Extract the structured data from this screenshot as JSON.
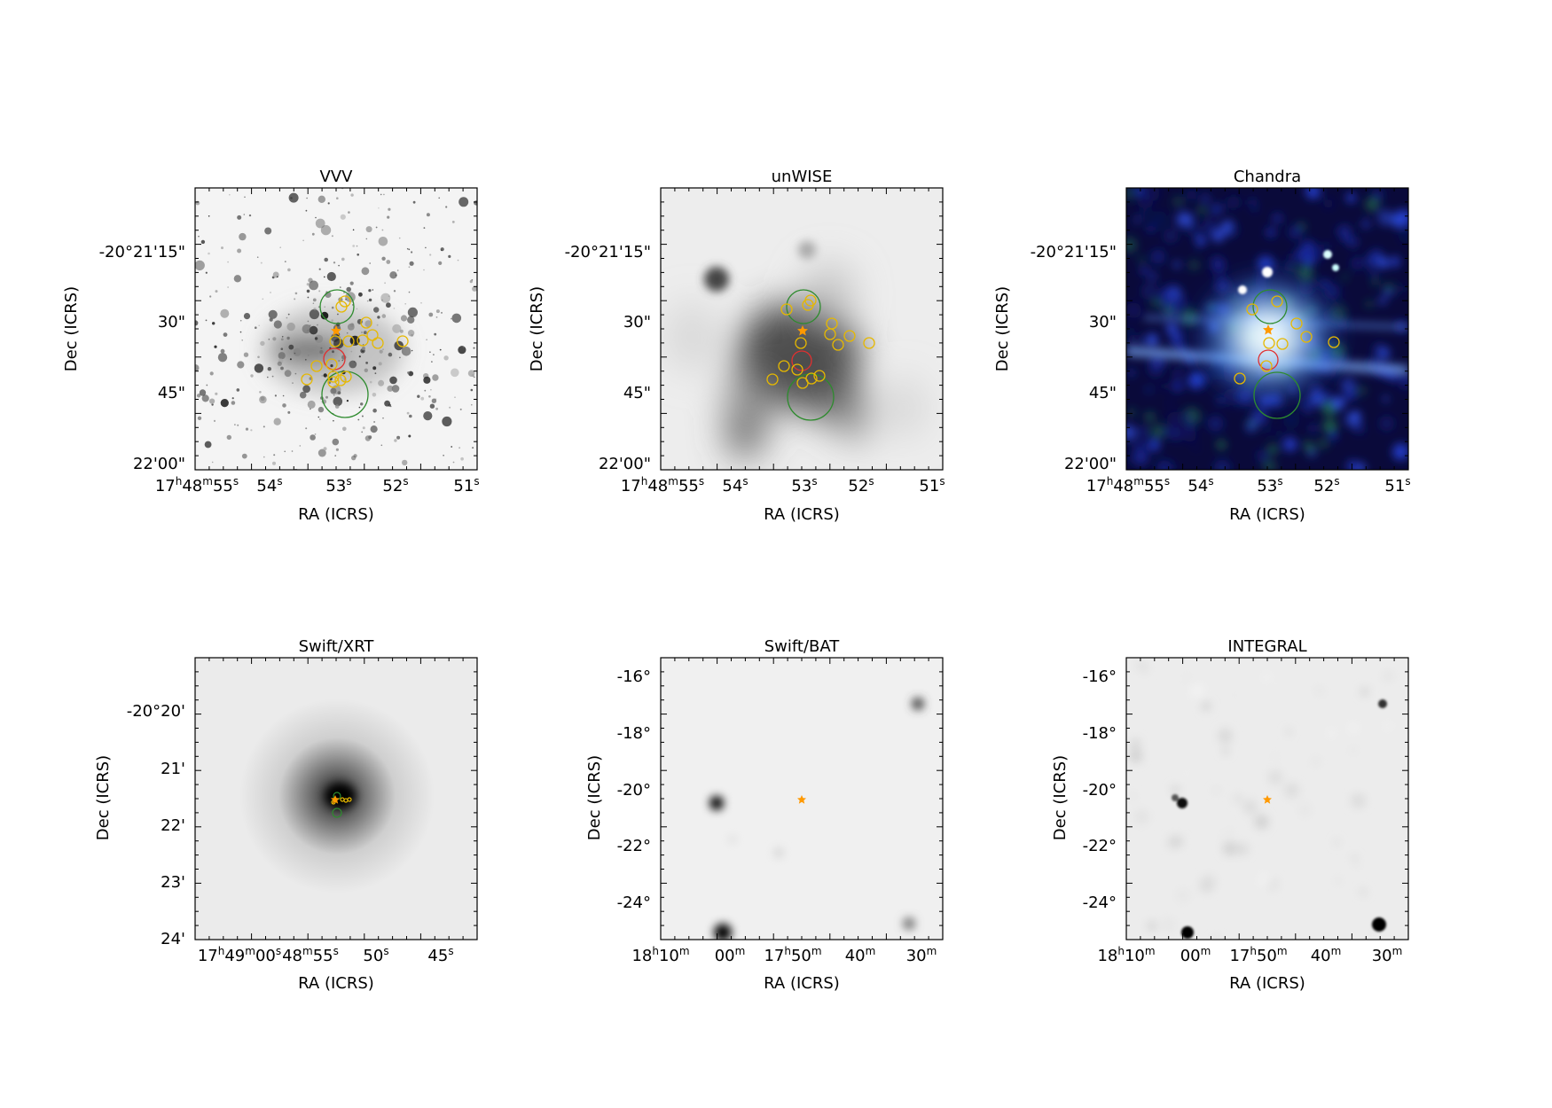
{
  "panels": [
    {
      "title": "VVV",
      "xlabel": "RA (ICRS)",
      "ylabel": "Dec (ICRS)",
      "xticks": [
        {
          "h": "17",
          "hu": "h",
          "m": "48",
          "mu": "m",
          "s": "55",
          "su": "s"
        },
        {
          "s": "54",
          "su": "s"
        },
        {
          "s": "53",
          "su": "s"
        },
        {
          "s": "52",
          "su": "s"
        },
        {
          "s": "51",
          "su": "s"
        }
      ],
      "yticks": [
        "-20°21'15\"",
        "30\"",
        "45\"",
        "22'00\""
      ],
      "image": "near-infrared star field, grayscale inverted",
      "markers": [
        "orange star",
        "red circle",
        "green circles",
        "yellow circles"
      ]
    },
    {
      "title": "unWISE",
      "xlabel": "RA (ICRS)",
      "ylabel": "Dec (ICRS)",
      "xticks": [
        {
          "h": "17",
          "hu": "h",
          "m": "48",
          "mu": "m",
          "s": "55",
          "su": "s"
        },
        {
          "s": "54",
          "su": "s"
        },
        {
          "s": "53",
          "su": "s"
        },
        {
          "s": "52",
          "su": "s"
        },
        {
          "s": "51",
          "su": "s"
        }
      ],
      "yticks": [
        "-20°21'15\"",
        "30\"",
        "45\"",
        "22'00\""
      ],
      "image": "mid-infrared blurred emission, grayscale inverted",
      "markers": [
        "orange star",
        "red circle",
        "green circles",
        "yellow circles"
      ]
    },
    {
      "title": "Chandra",
      "xlabel": "RA (ICRS)",
      "ylabel": "Dec (ICRS)",
      "xticks": [
        {
          "h": "17",
          "hu": "h",
          "m": "48",
          "mu": "m",
          "s": "55",
          "su": "s"
        },
        {
          "s": "54",
          "su": "s"
        },
        {
          "s": "53",
          "su": "s"
        },
        {
          "s": "52",
          "su": "s"
        },
        {
          "s": "51",
          "su": "s"
        }
      ],
      "yticks": [
        "-20°21'15\"",
        "30\"",
        "45\"",
        "22'00\""
      ],
      "image": "false-color X-ray image, blue background with bright white core",
      "markers": [
        "orange star",
        "red circle",
        "green circles",
        "yellow circles"
      ]
    },
    {
      "title": "Swift/XRT",
      "xlabel": "RA (ICRS)",
      "ylabel": "Dec (ICRS)",
      "xticks": [
        {
          "h": "17",
          "hu": "h",
          "m": "49",
          "mu": "m",
          "s": "00",
          "su": "s"
        },
        {
          "m": "48",
          "mu": "m",
          "s": "55",
          "su": "s"
        },
        {
          "s": "50",
          "su": "s"
        },
        {
          "s": "45",
          "su": "s"
        }
      ],
      "yticks": [
        "-20°20'",
        "21'",
        "22'",
        "23'",
        "24'"
      ],
      "image": "X-ray point source, grayscale inverted",
      "markers": [
        "orange star",
        "green circles",
        "yellow circles"
      ]
    },
    {
      "title": "Swift/BAT",
      "xlabel": "RA (ICRS)",
      "ylabel": "Dec (ICRS)",
      "xticks": [
        {
          "h": "18",
          "hu": "h",
          "m": "10",
          "mu": "m"
        },
        {
          "m": "00",
          "mu": "m"
        },
        {
          "h": "17",
          "hu": "h",
          "m": "50",
          "mu": "m"
        },
        {
          "m": "40",
          "mu": "m"
        },
        {
          "m": "30",
          "mu": "m"
        }
      ],
      "yticks": [
        "-16°",
        "-18°",
        "-20°",
        "-22°",
        "-24°"
      ],
      "image": "hard X-ray wide field, grayscale inverted",
      "markers": [
        "orange star"
      ]
    },
    {
      "title": "INTEGRAL",
      "xlabel": "RA (ICRS)",
      "ylabel": "Dec (ICRS)",
      "xticks": [
        {
          "h": "18",
          "hu": "h",
          "m": "10",
          "mu": "m"
        },
        {
          "m": "00",
          "mu": "m"
        },
        {
          "h": "17",
          "hu": "h",
          "m": "50",
          "mu": "m"
        },
        {
          "m": "40",
          "mu": "m"
        },
        {
          "m": "30",
          "mu": "m"
        }
      ],
      "yticks": [
        "-16°",
        "-18°",
        "-20°",
        "-22°",
        "-24°"
      ],
      "image": "gamma-ray wide field, grayscale inverted",
      "markers": [
        "orange star"
      ]
    }
  ],
  "colors": {
    "star_marker": "#ff9900",
    "region_red": "#e03030",
    "region_green": "#2e8b2e",
    "region_yellow": "#e6b800",
    "axis": "#000000",
    "chandra_bg": "#0a0a3a"
  }
}
